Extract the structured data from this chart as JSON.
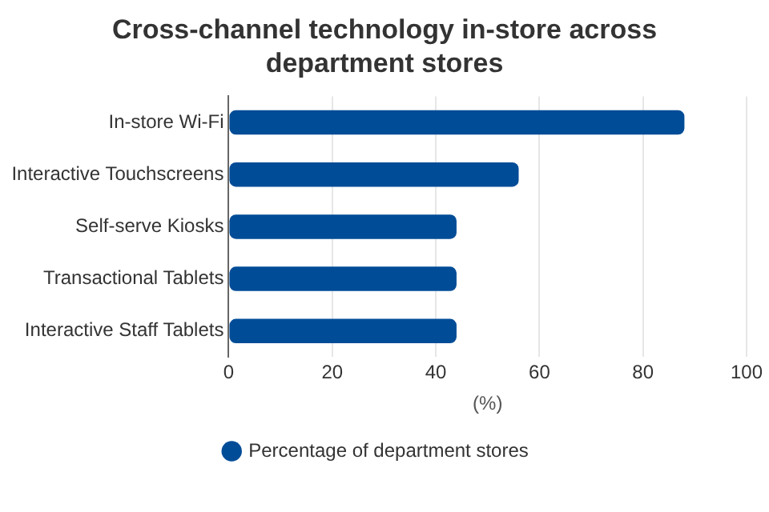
{
  "chart_data": {
    "type": "bar",
    "orientation": "horizontal",
    "title": "Cross-channel technology in-store across department stores",
    "categories": [
      "In-store Wi-Fi",
      "Interactive Touchscreens",
      "Self-serve Kiosks",
      "Transactional Tablets",
      "Interactive Staff Tablets"
    ],
    "series": [
      {
        "name": "Percentage of department stores",
        "color": "#004c97",
        "values": [
          88,
          56,
          44,
          44,
          44
        ]
      }
    ],
    "xlabel": "(%)",
    "xlim": [
      0,
      100
    ],
    "xticks": [
      0,
      20,
      40,
      60,
      80,
      100
    ],
    "grid": "x",
    "legend": "bottom"
  }
}
